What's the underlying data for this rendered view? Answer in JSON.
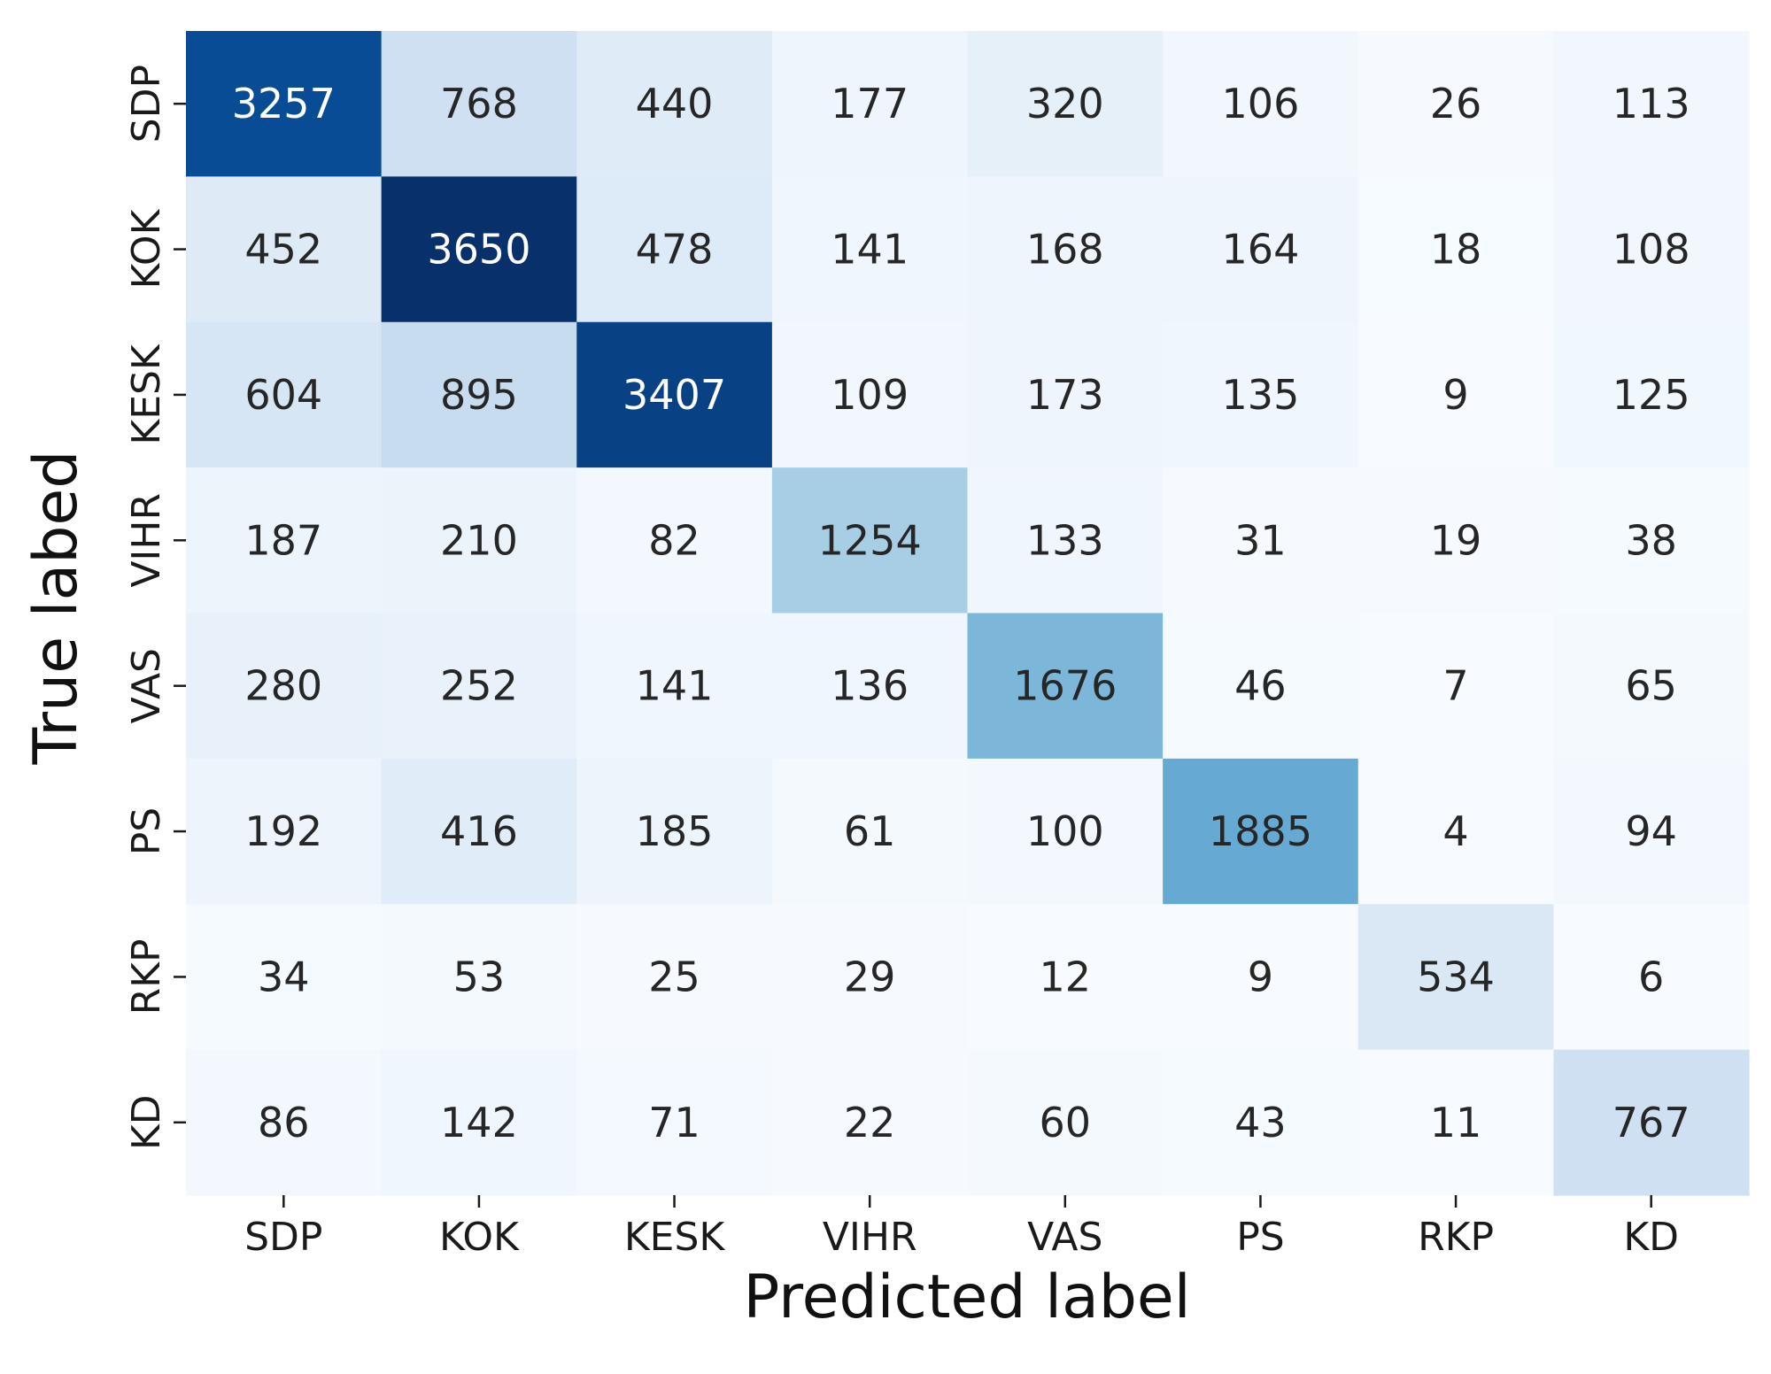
{
  "chart_data": {
    "type": "heatmap",
    "xlabel": "Predicted label",
    "ylabel": "True labed",
    "x_categories": [
      "SDP",
      "KOK",
      "KESK",
      "VIHR",
      "VAS",
      "PS",
      "RKP",
      "KD"
    ],
    "y_categories": [
      "SDP",
      "KOK",
      "KESK",
      "VIHR",
      "VAS",
      "PS",
      "RKP",
      "KD"
    ],
    "values": [
      [
        3257,
        768,
        440,
        177,
        320,
        106,
        26,
        113
      ],
      [
        452,
        3650,
        478,
        141,
        168,
        164,
        18,
        108
      ],
      [
        604,
        895,
        3407,
        109,
        173,
        135,
        9,
        125
      ],
      [
        187,
        210,
        82,
        1254,
        133,
        31,
        19,
        38
      ],
      [
        280,
        252,
        141,
        136,
        1676,
        46,
        7,
        65
      ],
      [
        192,
        416,
        185,
        61,
        100,
        1885,
        4,
        94
      ],
      [
        34,
        53,
        25,
        29,
        12,
        9,
        534,
        6
      ],
      [
        86,
        142,
        71,
        22,
        60,
        43,
        11,
        767
      ]
    ],
    "colormap": "Blues",
    "vmin": 4,
    "vmax": 3650,
    "colorbar": false
  }
}
